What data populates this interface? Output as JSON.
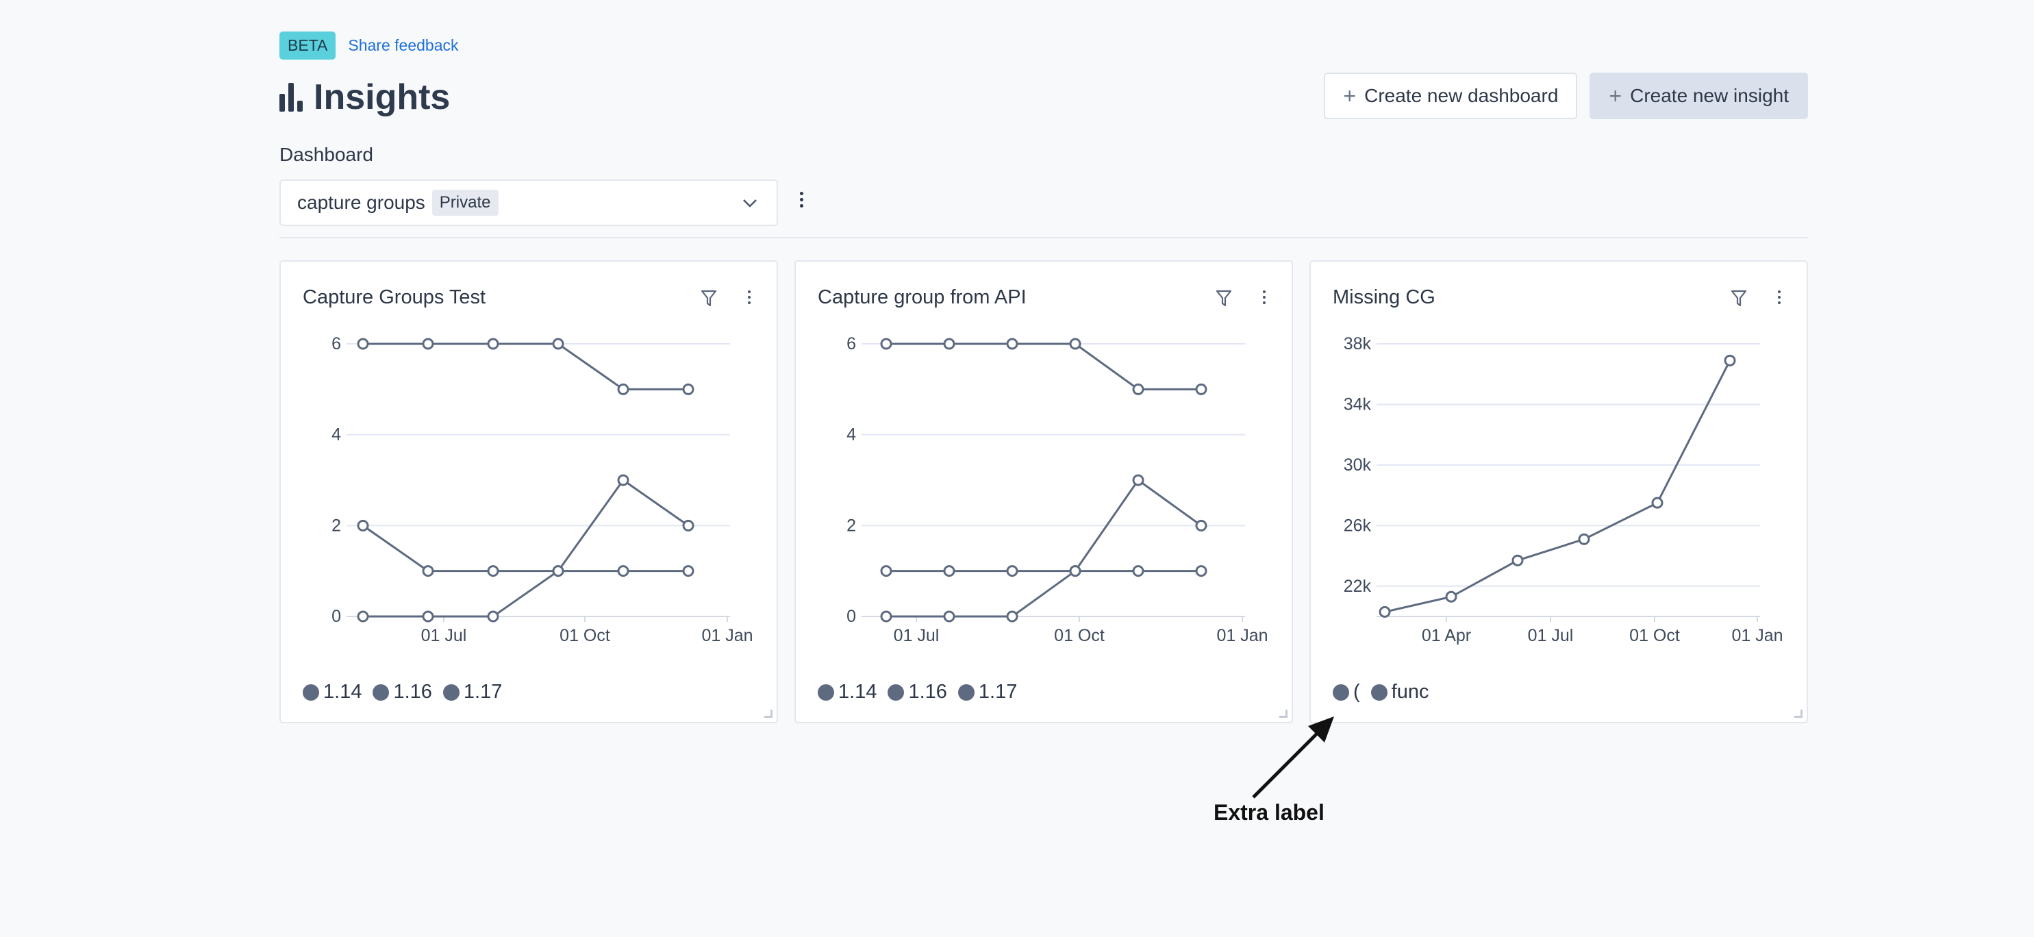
{
  "header": {
    "beta_badge": "BETA",
    "feedback_link": "Share feedback",
    "title": "Insights",
    "buttons": {
      "new_dashboard": "Create new dashboard",
      "new_insight": "Create new insight"
    }
  },
  "dashboard": {
    "label": "Dashboard",
    "selected": "capture groups",
    "visibility_badge": "Private"
  },
  "colors": {
    "series": "#5d6a80",
    "grid": "#e2e6f5",
    "accent": "#59d0db"
  },
  "cards": [
    {
      "title": "Capture Groups Test",
      "legend": [
        "1.14",
        "1.16",
        "1.17"
      ]
    },
    {
      "title": "Capture group from API",
      "legend": [
        "1.14",
        "1.16",
        "1.17"
      ]
    },
    {
      "title": "Missing CG",
      "legend": [
        "(",
        "func"
      ]
    }
  ],
  "annotation": {
    "label": "Extra label"
  },
  "chart_data": [
    {
      "type": "line",
      "title": "Capture Groups Test",
      "x_ticks": [
        "01 Jul",
        "01 Oct",
        "01 Jan"
      ],
      "y_ticks": [
        "0",
        "2",
        "4",
        "6"
      ],
      "ylim": [
        0,
        6
      ],
      "series": [
        {
          "name": "1.14",
          "values": [
            6,
            6,
            6,
            6,
            5,
            5
          ]
        },
        {
          "name": "1.16",
          "values": [
            2,
            1,
            1,
            1,
            1,
            1
          ]
        },
        {
          "name": "1.17",
          "values": [
            0,
            0,
            0,
            1,
            3,
            2
          ]
        }
      ]
    },
    {
      "type": "line",
      "title": "Capture group from API",
      "x_ticks": [
        "01 Jul",
        "01 Oct",
        "01 Jan"
      ],
      "y_ticks": [
        "0",
        "2",
        "4",
        "6"
      ],
      "ylim": [
        0,
        6
      ],
      "series": [
        {
          "name": "1.14",
          "values": [
            6,
            6,
            6,
            6,
            5,
            5
          ]
        },
        {
          "name": "1.16",
          "values": [
            1,
            1,
            1,
            1,
            1,
            1
          ]
        },
        {
          "name": "1.17",
          "values": [
            0,
            0,
            0,
            1,
            3,
            2
          ]
        }
      ]
    },
    {
      "type": "line",
      "title": "Missing CG",
      "x_ticks": [
        "01 Apr",
        "01 Jul",
        "01 Oct",
        "01 Jan"
      ],
      "y_ticks": [
        "22k",
        "26k",
        "30k",
        "34k",
        "38k"
      ],
      "ylim": [
        20000,
        38000
      ],
      "series": [
        {
          "name": "func",
          "values": [
            20300,
            21300,
            23700,
            25100,
            27500,
            36900
          ]
        }
      ]
    }
  ]
}
